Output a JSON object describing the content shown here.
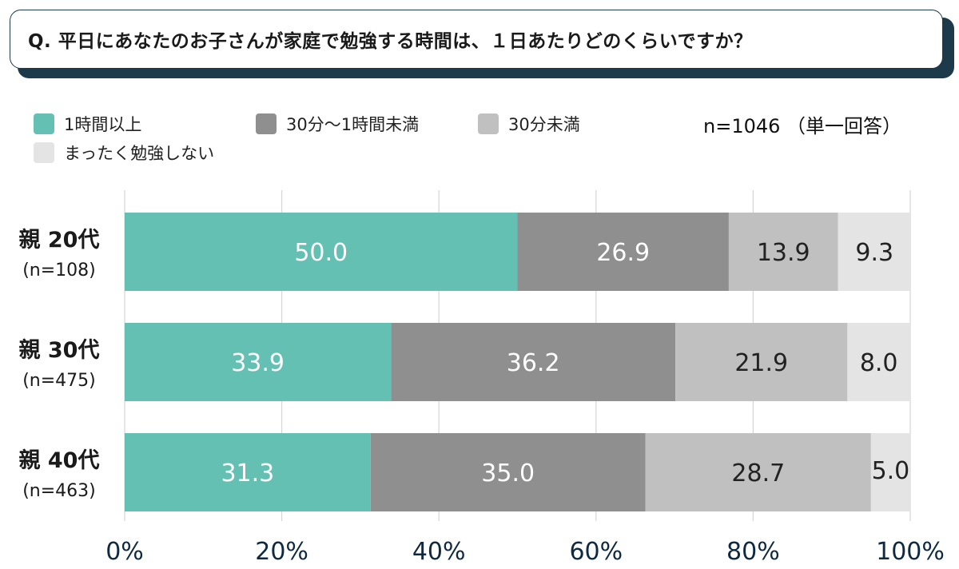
{
  "question": "Q. 平日にあなたのお子さんが家庭で勉強する時間は、１日あたりどのくらいですか？",
  "sample_note": "n=1046 （単一回答）",
  "colors": {
    "accent": "#65c0b4",
    "dark_gray": "#8f8f8f",
    "mid_gray": "#c0c0c0",
    "light_gray": "#e4e4e4",
    "title_border": "#1d3a4a",
    "tick_color": "#0f2a40"
  },
  "chart_data": {
    "type": "bar",
    "orientation": "horizontal",
    "stacked": true,
    "categories": [
      "親 20代",
      "親 30代",
      "親 40代"
    ],
    "category_n": [
      "(n=108)",
      "(n=475)",
      "(n=463)"
    ],
    "series": [
      {
        "name": "1時間以上",
        "color": "#65c0b4",
        "label_color": "#ffffff",
        "values": [
          50.0,
          33.9,
          31.3
        ]
      },
      {
        "name": "30分～1時間未満",
        "color": "#8f8f8f",
        "label_color": "#ffffff",
        "values": [
          26.9,
          36.2,
          35.0
        ]
      },
      {
        "name": "30分未満",
        "color": "#c0c0c0",
        "label_color": "#222222",
        "values": [
          13.9,
          21.9,
          28.7
        ]
      },
      {
        "name": "まったく勉強しない",
        "color": "#e4e4e4",
        "label_color": "#222222",
        "values": [
          9.3,
          8.0,
          5.0
        ]
      }
    ],
    "data_labels": [
      [
        "50.0",
        "26.9",
        "13.9",
        "9.3"
      ],
      [
        "33.9",
        "36.2",
        "21.9",
        "8.0"
      ],
      [
        "31.3",
        "35.0",
        "28.7",
        "5.0"
      ]
    ],
    "xlim": [
      0,
      100
    ],
    "xticks": [
      0,
      20,
      40,
      60,
      80,
      100
    ],
    "xtick_labels": [
      "0%",
      "20%",
      "40%",
      "60%",
      "80%",
      "100%"
    ],
    "grid": true,
    "legend_position": "top-left"
  }
}
